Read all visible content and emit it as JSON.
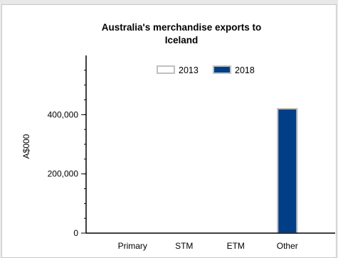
{
  "chart_data": {
    "type": "bar",
    "title_line1": "Australia's merchandise exports to",
    "title_line2": "Iceland",
    "ylabel": "A$000",
    "xlabel": "",
    "categories": [
      "Primary",
      "STM",
      "ETM",
      "Other"
    ],
    "series": [
      {
        "name": "2013",
        "values": [
          0,
          0,
          0,
          420000
        ],
        "fill": "#ffffff",
        "stroke": "#c0c0c0"
      },
      {
        "name": "2018",
        "values": [
          0,
          0,
          0,
          420000
        ],
        "fill": "#003f87",
        "stroke": "#c0c0c0"
      }
    ],
    "ylim": [
      0,
      600000
    ],
    "yticks": [
      0,
      200000,
      400000
    ],
    "ytick_labels": [
      "0",
      "200,000",
      "400,000"
    ],
    "legend_position": "top"
  }
}
